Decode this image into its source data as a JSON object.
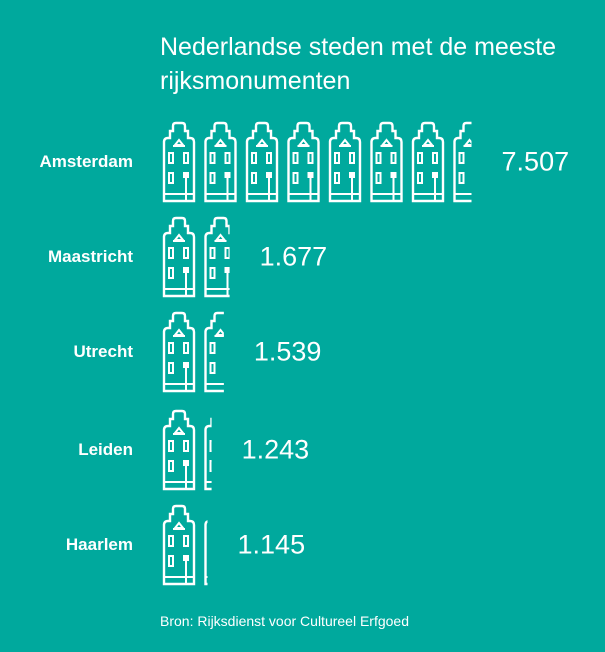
{
  "chart_data": {
    "type": "pictogram-bar",
    "title": "Nederlandse steden met de meeste rijksmonumenten",
    "categories": [
      "Amsterdam",
      "Maastricht",
      "Utrecht",
      "Leiden",
      "Haarlem"
    ],
    "values": [
      7507,
      1677,
      1539,
      1243,
      1145
    ],
    "value_labels": [
      "7.507",
      "1.677",
      "1.539",
      "1.243",
      "1.145"
    ],
    "icon": "canal-house-icon",
    "source": "Bron: Rijksdienst voor Cultureel Erfgoed"
  },
  "colors": {
    "background": "#00a99d",
    "foreground": "#ffffff"
  }
}
